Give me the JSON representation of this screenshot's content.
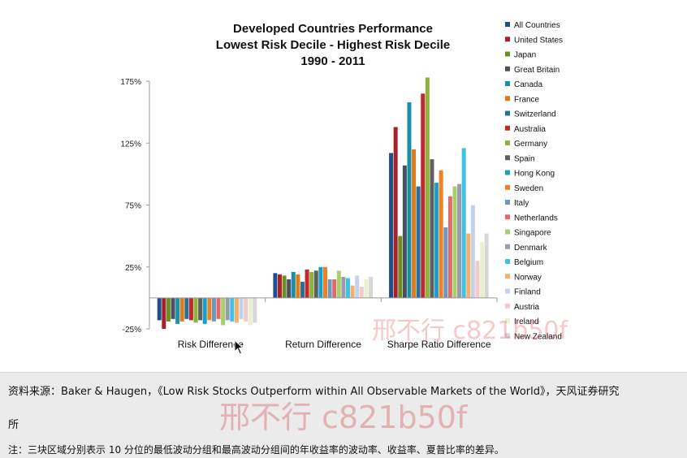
{
  "chart_data": {
    "type": "bar",
    "title_lines": [
      "Developed Countries Performance",
      "Lowest Risk Decile - Highest Risk Decile",
      "1990 - 2011"
    ],
    "categories": [
      "Risk Difference",
      "Return Difference",
      "Sharpe Ratio Difference"
    ],
    "ylim": [
      -25,
      175
    ],
    "y_ticks": [
      -25,
      25,
      75,
      125,
      175
    ],
    "y_tick_labels": [
      "-25%",
      "25%",
      "75%",
      "125%",
      "175%"
    ],
    "grid": false,
    "legend_position": "right",
    "series": [
      {
        "name": "All Countries",
        "color": "#1f4e8c",
        "values": [
          -18,
          20,
          117
        ]
      },
      {
        "name": "United States",
        "color": "#a8202a",
        "values": [
          -25,
          19,
          138
        ]
      },
      {
        "name": "Japan",
        "color": "#6b8e23",
        "values": [
          -19,
          18,
          50
        ]
      },
      {
        "name": "Great Britain",
        "color": "#4b5060",
        "values": [
          -17,
          15,
          107
        ]
      },
      {
        "name": "Canada",
        "color": "#1b8fa8",
        "values": [
          -21,
          21,
          158
        ]
      },
      {
        "name": "France",
        "color": "#e07b1a",
        "values": [
          -19,
          19,
          120
        ]
      },
      {
        "name": "Switzerland",
        "color": "#2a6f96",
        "values": [
          -17,
          13,
          90
        ]
      },
      {
        "name": "Australia",
        "color": "#c0282e",
        "values": [
          -18,
          23,
          165
        ]
      },
      {
        "name": "Germany",
        "color": "#8db33a",
        "values": [
          -20,
          21,
          178
        ]
      },
      {
        "name": "Spain",
        "color": "#5f5f5f",
        "values": [
          -18,
          22,
          112
        ]
      },
      {
        "name": "Hong Kong",
        "color": "#1aa0c8",
        "values": [
          -21,
          25,
          93
        ]
      },
      {
        "name": "Sweden",
        "color": "#ef8122",
        "values": [
          -18,
          25,
          103
        ]
      },
      {
        "name": "Italy",
        "color": "#6f98c0",
        "values": [
          -19,
          15,
          57
        ]
      },
      {
        "name": "Netherlands",
        "color": "#e06a6a",
        "values": [
          -17,
          15,
          82
        ]
      },
      {
        "name": "Singapore",
        "color": "#a7cf6a",
        "values": [
          -22,
          22,
          90
        ]
      },
      {
        "name": "Denmark",
        "color": "#9b9bb0",
        "values": [
          -18,
          17,
          92
        ]
      },
      {
        "name": "Belgium",
        "color": "#3ec2e6",
        "values": [
          -19,
          16,
          121
        ]
      },
      {
        "name": "Norway",
        "color": "#f4b06a",
        "values": [
          -20,
          10,
          52
        ]
      },
      {
        "name": "Finland",
        "color": "#c4d3ea",
        "values": [
          -17,
          18,
          75
        ]
      },
      {
        "name": "Austria",
        "color": "#f3c9c9",
        "values": [
          -19,
          9,
          30
        ]
      },
      {
        "name": "Ireland",
        "color": "#e8f0d0",
        "values": [
          -22,
          15,
          45
        ]
      },
      {
        "name": "New Zealand",
        "color": "#d7d7d7",
        "values": [
          -20,
          17,
          52
        ]
      }
    ]
  },
  "caption": {
    "source_line": "资料来源：Baker & Haugen，《Low Risk Stocks Outperform within All Observable Markets of the World》，天风证券研究",
    "source_cont": "所",
    "note_line": "注：三块区域分别表示 10 分位的最低波动分组和最高波动分组间的年收益率的波动率、收益率、夏普比率的差异。"
  },
  "watermarks": {
    "upper": "邢不行 c821b50f",
    "lower": "邢不行 c821b50f"
  }
}
